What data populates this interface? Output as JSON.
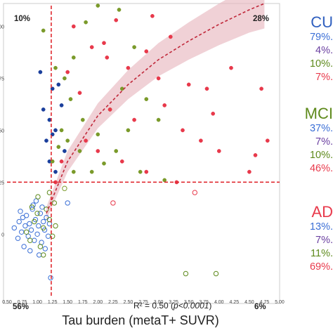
{
  "chart_data": {
    "type": "scatter",
    "xlabel": "Tau burden (metaT+ SUVR)",
    "xlim": [
      0.5,
      5.0
    ],
    "ylim": [
      -30,
      110
    ],
    "x_ticks": [
      "0.50",
      "0.75",
      "1.00",
      "1.25",
      "1.50",
      "1.75",
      "2.00",
      "2.25",
      "2.50",
      "2.75",
      "3.00",
      "3.25",
      "3.50",
      "3.75",
      "4.00",
      "4.25",
      "4.50",
      "4.75",
      "5.00"
    ],
    "y_ticks": [
      "0",
      "25",
      "50",
      "75",
      "100"
    ],
    "x_cutoff": 1.23,
    "y_cutoff": 25,
    "quadrant_labels": {
      "top_left": "10%",
      "top_right": "28%",
      "bottom_left": "56%",
      "bottom_right": "6%"
    },
    "annotation": {
      "prefix": "R² = 0.50 (",
      "italic": "p<0.0001",
      "suffix": ")"
    },
    "fit": {
      "model": "logarithmic",
      "r2": 0.5,
      "x": [
        1.15,
        1.5,
        2.0,
        2.5,
        3.0,
        3.5,
        4.0,
        4.5,
        4.75
      ],
      "y": [
        10,
        35,
        57,
        72,
        84,
        93,
        101,
        108,
        111
      ],
      "ci": [
        3,
        5,
        6,
        7,
        8,
        9,
        10,
        11,
        12
      ]
    },
    "series": [
      {
        "name": "CU",
        "color": "#3b6fd6",
        "points": [
          [
            0.62,
            3
          ],
          [
            0.68,
            -2
          ],
          [
            0.7,
            6
          ],
          [
            0.74,
            1
          ],
          [
            0.78,
            -6
          ],
          [
            0.8,
            4
          ],
          [
            0.82,
            9
          ],
          [
            0.85,
            -1
          ],
          [
            0.87,
            5
          ],
          [
            0.9,
            2
          ],
          [
            0.92,
            12
          ],
          [
            0.95,
            -3
          ],
          [
            0.97,
            7
          ],
          [
            1.0,
            0
          ],
          [
            1.02,
            4
          ],
          [
            1.05,
            10
          ],
          [
            1.07,
            -4
          ],
          [
            1.1,
            6
          ],
          [
            1.12,
            2
          ],
          [
            1.15,
            8
          ],
          [
            1.18,
            -1
          ],
          [
            1.2,
            5
          ],
          [
            0.88,
            -8
          ],
          [
            0.76,
            8
          ],
          [
            1.08,
            13
          ],
          [
            0.93,
            14
          ],
          [
            1.13,
            -7
          ],
          [
            1.5,
            15
          ],
          [
            1.22,
            -21
          ],
          [
            0.98,
            16
          ],
          [
            1.03,
            -10
          ],
          [
            0.72,
            11
          ]
        ]
      },
      {
        "name": "CU",
        "color": "#1b3f9c",
        "points": [
          [
            1.05,
            78
          ],
          [
            1.1,
            60
          ],
          [
            1.2,
            55
          ],
          [
            1.25,
            70
          ],
          [
            1.3,
            50
          ],
          [
            1.15,
            45
          ],
          [
            1.35,
            72
          ],
          [
            1.4,
            62
          ],
          [
            1.45,
            40
          ],
          [
            1.3,
            30
          ],
          [
            1.2,
            35
          ],
          [
            1.25,
            48
          ]
        ]
      },
      {
        "name": "MCI",
        "color": "#5e8a1c",
        "points": [
          [
            0.82,
            1
          ],
          [
            0.88,
            -3
          ],
          [
            0.95,
            6
          ],
          [
            1.0,
            10
          ],
          [
            1.05,
            -6
          ],
          [
            1.1,
            3
          ],
          [
            1.15,
            12
          ],
          [
            1.2,
            7
          ],
          [
            1.25,
            -1
          ],
          [
            1.28,
            15
          ],
          [
            1.3,
            4
          ],
          [
            1.2,
            20
          ],
          [
            1.1,
            -10
          ],
          [
            3.45,
            -19
          ],
          [
            3.95,
            -19
          ],
          [
            0.91,
            13
          ],
          [
            1.01,
            18
          ]
        ]
      },
      {
        "name": "MCI",
        "color": "#7a9a2a",
        "points": [
          [
            1.1,
            98
          ],
          [
            1.3,
            80
          ],
          [
            1.45,
            75
          ],
          [
            1.55,
            65
          ],
          [
            1.6,
            85
          ],
          [
            1.75,
            55
          ],
          [
            2.2,
            60
          ],
          [
            2.4,
            70
          ],
          [
            2.6,
            90
          ],
          [
            1.8,
            102
          ],
          [
            1.4,
            50
          ],
          [
            1.5,
            45
          ],
          [
            1.35,
            42
          ],
          [
            2.8,
            65
          ],
          [
            3.0,
            55
          ],
          [
            2.5,
            50
          ],
          [
            1.7,
            40
          ],
          [
            2.0,
            48
          ],
          [
            2.3,
            40
          ],
          [
            2.1,
            34
          ],
          [
            1.9,
            30
          ],
          [
            2.7,
            30
          ],
          [
            3.1,
            26
          ],
          [
            1.6,
            30
          ],
          [
            2.0,
            110
          ],
          [
            2.35,
            108
          ],
          [
            1.25,
            35
          ],
          [
            1.45,
            22
          ]
        ]
      },
      {
        "name": "AD",
        "color": "#e8394b",
        "points": [
          [
            1.6,
            100
          ],
          [
            1.9,
            90
          ],
          [
            2.15,
            85
          ],
          [
            2.5,
            80
          ],
          [
            2.8,
            88
          ],
          [
            3.0,
            75
          ],
          [
            3.2,
            95
          ],
          [
            3.5,
            72
          ],
          [
            3.8,
            70
          ],
          [
            4.2,
            80
          ],
          [
            4.7,
            70
          ],
          [
            2.2,
            60
          ],
          [
            2.6,
            55
          ],
          [
            3.1,
            62
          ],
          [
            3.4,
            50
          ],
          [
            3.7,
            45
          ],
          [
            4.0,
            40
          ],
          [
            4.5,
            30
          ],
          [
            1.8,
            45
          ],
          [
            2.0,
            40
          ],
          [
            2.4,
            35
          ],
          [
            2.8,
            30
          ],
          [
            3.3,
            25
          ],
          [
            3.6,
            20
          ],
          [
            4.8,
            45
          ],
          [
            1.5,
            78
          ],
          [
            1.7,
            68
          ],
          [
            2.9,
            105
          ],
          [
            2.1,
            92
          ],
          [
            1.4,
            35
          ],
          [
            1.3,
            25
          ],
          [
            2.3,
            103
          ],
          [
            3.9,
            58
          ],
          [
            2.25,
            15
          ],
          [
            4.6,
            38
          ]
        ]
      }
    ]
  },
  "legend": {
    "groups": [
      {
        "name": "CU",
        "color": "#2f5fbf",
        "values": [
          {
            "text": "79%.",
            "color": "#3b6fd6"
          },
          {
            "text": "4%.",
            "color": "#6a3fa0"
          },
          {
            "text": "10%.",
            "color": "#5e8a1c"
          },
          {
            "text": "7%.",
            "color": "#e8394b"
          }
        ]
      },
      {
        "name": "MCI",
        "color": "#5e8a1c",
        "values": [
          {
            "text": "37%.",
            "color": "#3b6fd6"
          },
          {
            "text": "7%.",
            "color": "#6a3fa0"
          },
          {
            "text": "10%.",
            "color": "#5e8a1c"
          },
          {
            "text": "46%.",
            "color": "#e8394b"
          }
        ]
      },
      {
        "name": "AD",
        "color": "#e8394b",
        "values": [
          {
            "text": "13%.",
            "color": "#3b6fd6"
          },
          {
            "text": "7%.",
            "color": "#6a3fa0"
          },
          {
            "text": "11%.",
            "color": "#5e8a1c"
          },
          {
            "text": "69%.",
            "color": "#e8394b"
          }
        ]
      }
    ]
  }
}
